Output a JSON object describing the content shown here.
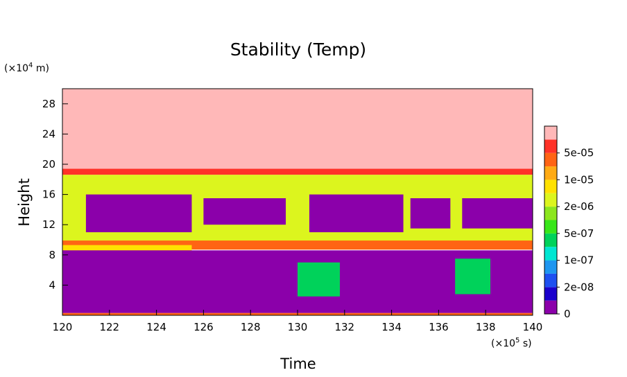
{
  "chart_data": {
    "type": "heatmap",
    "title": "Stability (Temp)",
    "xlabel": "Time",
    "ylabel": "Height",
    "x_unit_prefix": "(×10",
    "x_unit_exp": "5",
    "x_unit_suffix": " s)",
    "y_unit_prefix": "(×10",
    "y_unit_exp": "4",
    "y_unit_suffix": " m)",
    "xlim": [
      120,
      140
    ],
    "ylim": [
      0,
      30
    ],
    "xticks": [
      "120",
      "122",
      "124",
      "126",
      "128",
      "130",
      "132",
      "134",
      "136",
      "138",
      "140"
    ],
    "yticks": [
      "4",
      "8",
      "12",
      "16",
      "20",
      "24",
      "28"
    ],
    "grid": false,
    "colorbar": {
      "position": "right",
      "labels": [
        "0",
        "2e-08",
        "1e-07",
        "5e-07",
        "2e-06",
        "1e-05",
        "5e-05"
      ],
      "levels": [
        {
          "color": "#8b00aa"
        },
        {
          "color": "#1a00cc"
        },
        {
          "color": "#1e50f0"
        },
        {
          "color": "#1e96f0"
        },
        {
          "color": "#00e6d2"
        },
        {
          "color": "#00d25a"
        },
        {
          "color": "#37e619"
        },
        {
          "color": "#8ce61e"
        },
        {
          "color": "#dcf51e"
        },
        {
          "color": "#ffe100"
        },
        {
          "color": "#ffaa14"
        },
        {
          "color": "#ff6414"
        },
        {
          "color": "#ff3228"
        },
        {
          "color": "#ffb8b8"
        }
      ]
    },
    "regions": [
      {
        "desc": "upper layer",
        "x": [
          120,
          140
        ],
        "y": [
          19.2,
          30
        ],
        "level": 13
      },
      {
        "desc": "tropopause band",
        "x": [
          120,
          140
        ],
        "y": [
          18.6,
          19.4
        ],
        "level": 12
      },
      {
        "desc": "mid layer",
        "x": [
          120,
          140
        ],
        "y": [
          9,
          18.6
        ],
        "level": 8
      },
      {
        "desc": "upper unstable pocket",
        "x": [
          121,
          125.5
        ],
        "y": [
          11,
          16
        ],
        "level": 0
      },
      {
        "desc": "upper unstable pocket",
        "x": [
          126,
          129.5
        ],
        "y": [
          12,
          15.5
        ],
        "level": 0
      },
      {
        "desc": "upper unstable pocket",
        "x": [
          130.5,
          134.5
        ],
        "y": [
          11,
          16
        ],
        "level": 0
      },
      {
        "desc": "upper unstable pocket",
        "x": [
          134.8,
          136.5
        ],
        "y": [
          11.5,
          15.5
        ],
        "level": 0
      },
      {
        "desc": "upper unstable pocket",
        "x": [
          137,
          140
        ],
        "y": [
          11.5,
          15.5
        ],
        "level": 0
      },
      {
        "desc": "stable band",
        "x": [
          120,
          140
        ],
        "y": [
          8.7,
          9.9
        ],
        "level": 11
      },
      {
        "desc": "low stable layer",
        "x": [
          120,
          125.5
        ],
        "y": [
          6,
          9.3
        ],
        "level": 9
      },
      {
        "desc": "boundary layer",
        "x": [
          120,
          140
        ],
        "y": [
          0.3,
          8.6
        ],
        "level": 0
      },
      {
        "desc": "plume",
        "x": [
          130,
          131.8
        ],
        "y": [
          2.5,
          7
        ],
        "level": 5
      },
      {
        "desc": "plume",
        "x": [
          136.7,
          138.2
        ],
        "y": [
          2.8,
          7.5
        ],
        "level": 5
      },
      {
        "desc": "surface band",
        "x": [
          120,
          140
        ],
        "y": [
          0,
          0.3
        ],
        "level": 11
      }
    ]
  }
}
